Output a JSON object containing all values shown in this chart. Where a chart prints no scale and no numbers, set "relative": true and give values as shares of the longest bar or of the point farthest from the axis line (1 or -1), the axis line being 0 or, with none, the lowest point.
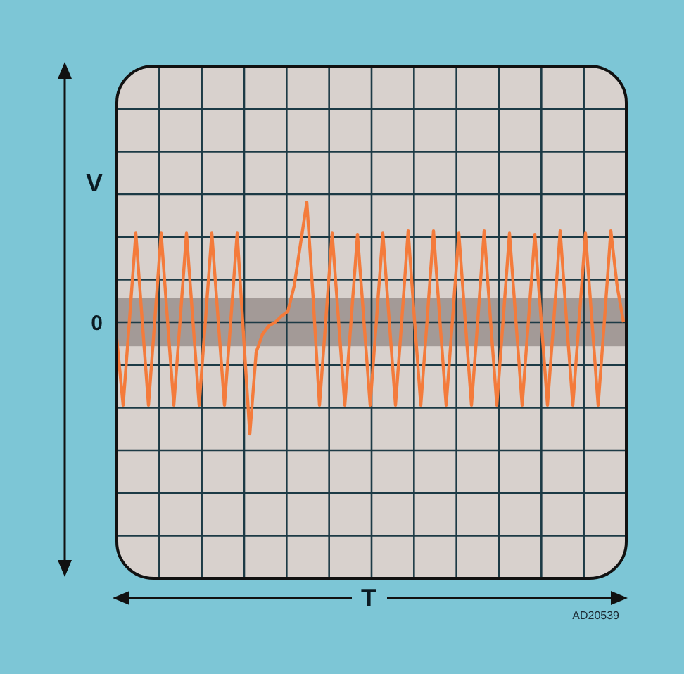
{
  "chart_data": {
    "type": "line",
    "relative": true,
    "ylabel": "V",
    "grid": true,
    "categories": [
      null,
      null,
      null,
      null,
      null,
      null,
      null,
      null,
      null,
      null,
      null,
      null,
      null,
      null,
      null,
      null,
      null,
      null,
      null,
      null,
      null,
      null,
      null,
      null,
      null,
      null,
      null,
      null,
      null,
      null,
      null,
      null,
      null,
      null,
      null,
      null,
      null,
      null,
      null,
      null,
      null,
      null,
      null,
      null,
      null,
      null,
      null,
      null,
      null,
      null,
      null,
      null,
      null,
      null,
      null,
      null,
      null,
      null,
      null,
      null,
      null,
      null,
      null,
      null,
      null,
      null,
      null,
      null,
      null,
      null,
      null,
      null,
      null,
      null,
      null,
      null,
      null,
      null,
      null,
      null,
      null
    ],
    "bands": [
      {
        "axis": "y",
        "from": -0.2,
        "to": 0.2,
        "color": "#a39a97"
      }
    ],
    "annotations": [
      {
        "text": "0"
      },
      "T",
      "AD20539"
    ],
    "series": [
      {
        "color": "#f47b3b",
        "values": [
          -0.14,
          -0.69,
          0.02,
          0.74,
          0.02,
          -0.69,
          0.02,
          0.74,
          0.02,
          -0.69,
          0.02,
          0.74,
          0.02,
          -0.69,
          0.02,
          0.74,
          0.02,
          -0.69,
          0.02,
          0.74,
          -0.1,
          -0.93,
          -0.25,
          -0.1,
          -0.03,
          0,
          0.05,
          0.09,
          0.3,
          0.65,
          1,
          0.2,
          -0.69,
          0.02,
          0.74,
          0.02,
          -0.69,
          0.02,
          0.73,
          0.02,
          -0.69,
          0.02,
          0.74,
          0.02,
          -0.69,
          0.02,
          0.76,
          0.02,
          -0.69,
          0.02,
          0.76,
          0.02,
          -0.69,
          0.02,
          0.74,
          0.02,
          -0.69,
          0.02,
          0.76,
          0.02,
          -0.69,
          0.02,
          0.74,
          0.02,
          -0.69,
          0.02,
          0.73,
          0.02,
          -0.69,
          0.02,
          0.76,
          0.02,
          -0.69,
          0.02,
          0.74,
          0.02,
          -0.69,
          0.02,
          0.76,
          0.3,
          0
        ]
      }
    ]
  }
}
